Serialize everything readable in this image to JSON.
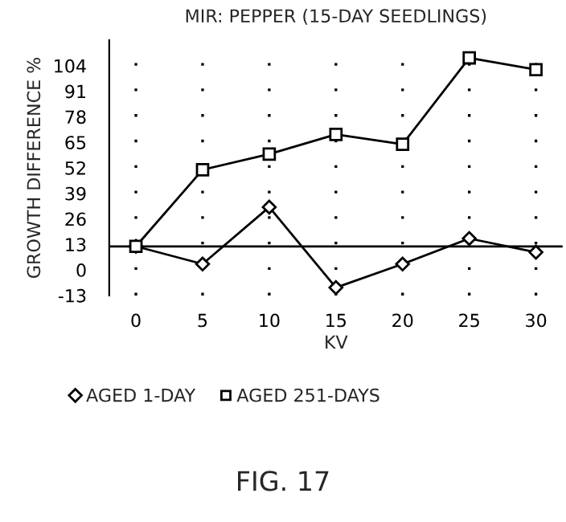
{
  "chart_data": {
    "type": "line",
    "title": "MIR: PEPPER (15-DAY SEEDLINGS)",
    "xlabel": "KV",
    "ylabel": "GROWTH DIFFERENCE %",
    "x": [
      0,
      5,
      10,
      15,
      20,
      25,
      30
    ],
    "series": [
      {
        "name": "AGED 1-DAY",
        "color": "#000000",
        "marker": "diamond",
        "values": [
          12,
          3,
          32,
          -9,
          3,
          16,
          9
        ]
      },
      {
        "name": "AGED 251-DAYS",
        "color": "#000000",
        "marker": "square",
        "values": [
          12,
          51,
          59,
          69,
          64,
          108,
          102
        ]
      }
    ],
    "xlim": [
      -2,
      32
    ],
    "xticks": [
      0,
      5,
      10,
      15,
      20,
      25,
      30
    ],
    "ylim": [
      -13,
      117
    ],
    "yticks": [
      -13,
      0,
      13,
      26,
      39,
      52,
      65,
      78,
      91,
      104
    ],
    "ref_lines": [
      {
        "axis": "y",
        "value": 12,
        "color": "#000000"
      }
    ],
    "grid": true,
    "legend": "bottom",
    "line_style": "solid",
    "annotations": [
      "FIG. 17"
    ]
  }
}
